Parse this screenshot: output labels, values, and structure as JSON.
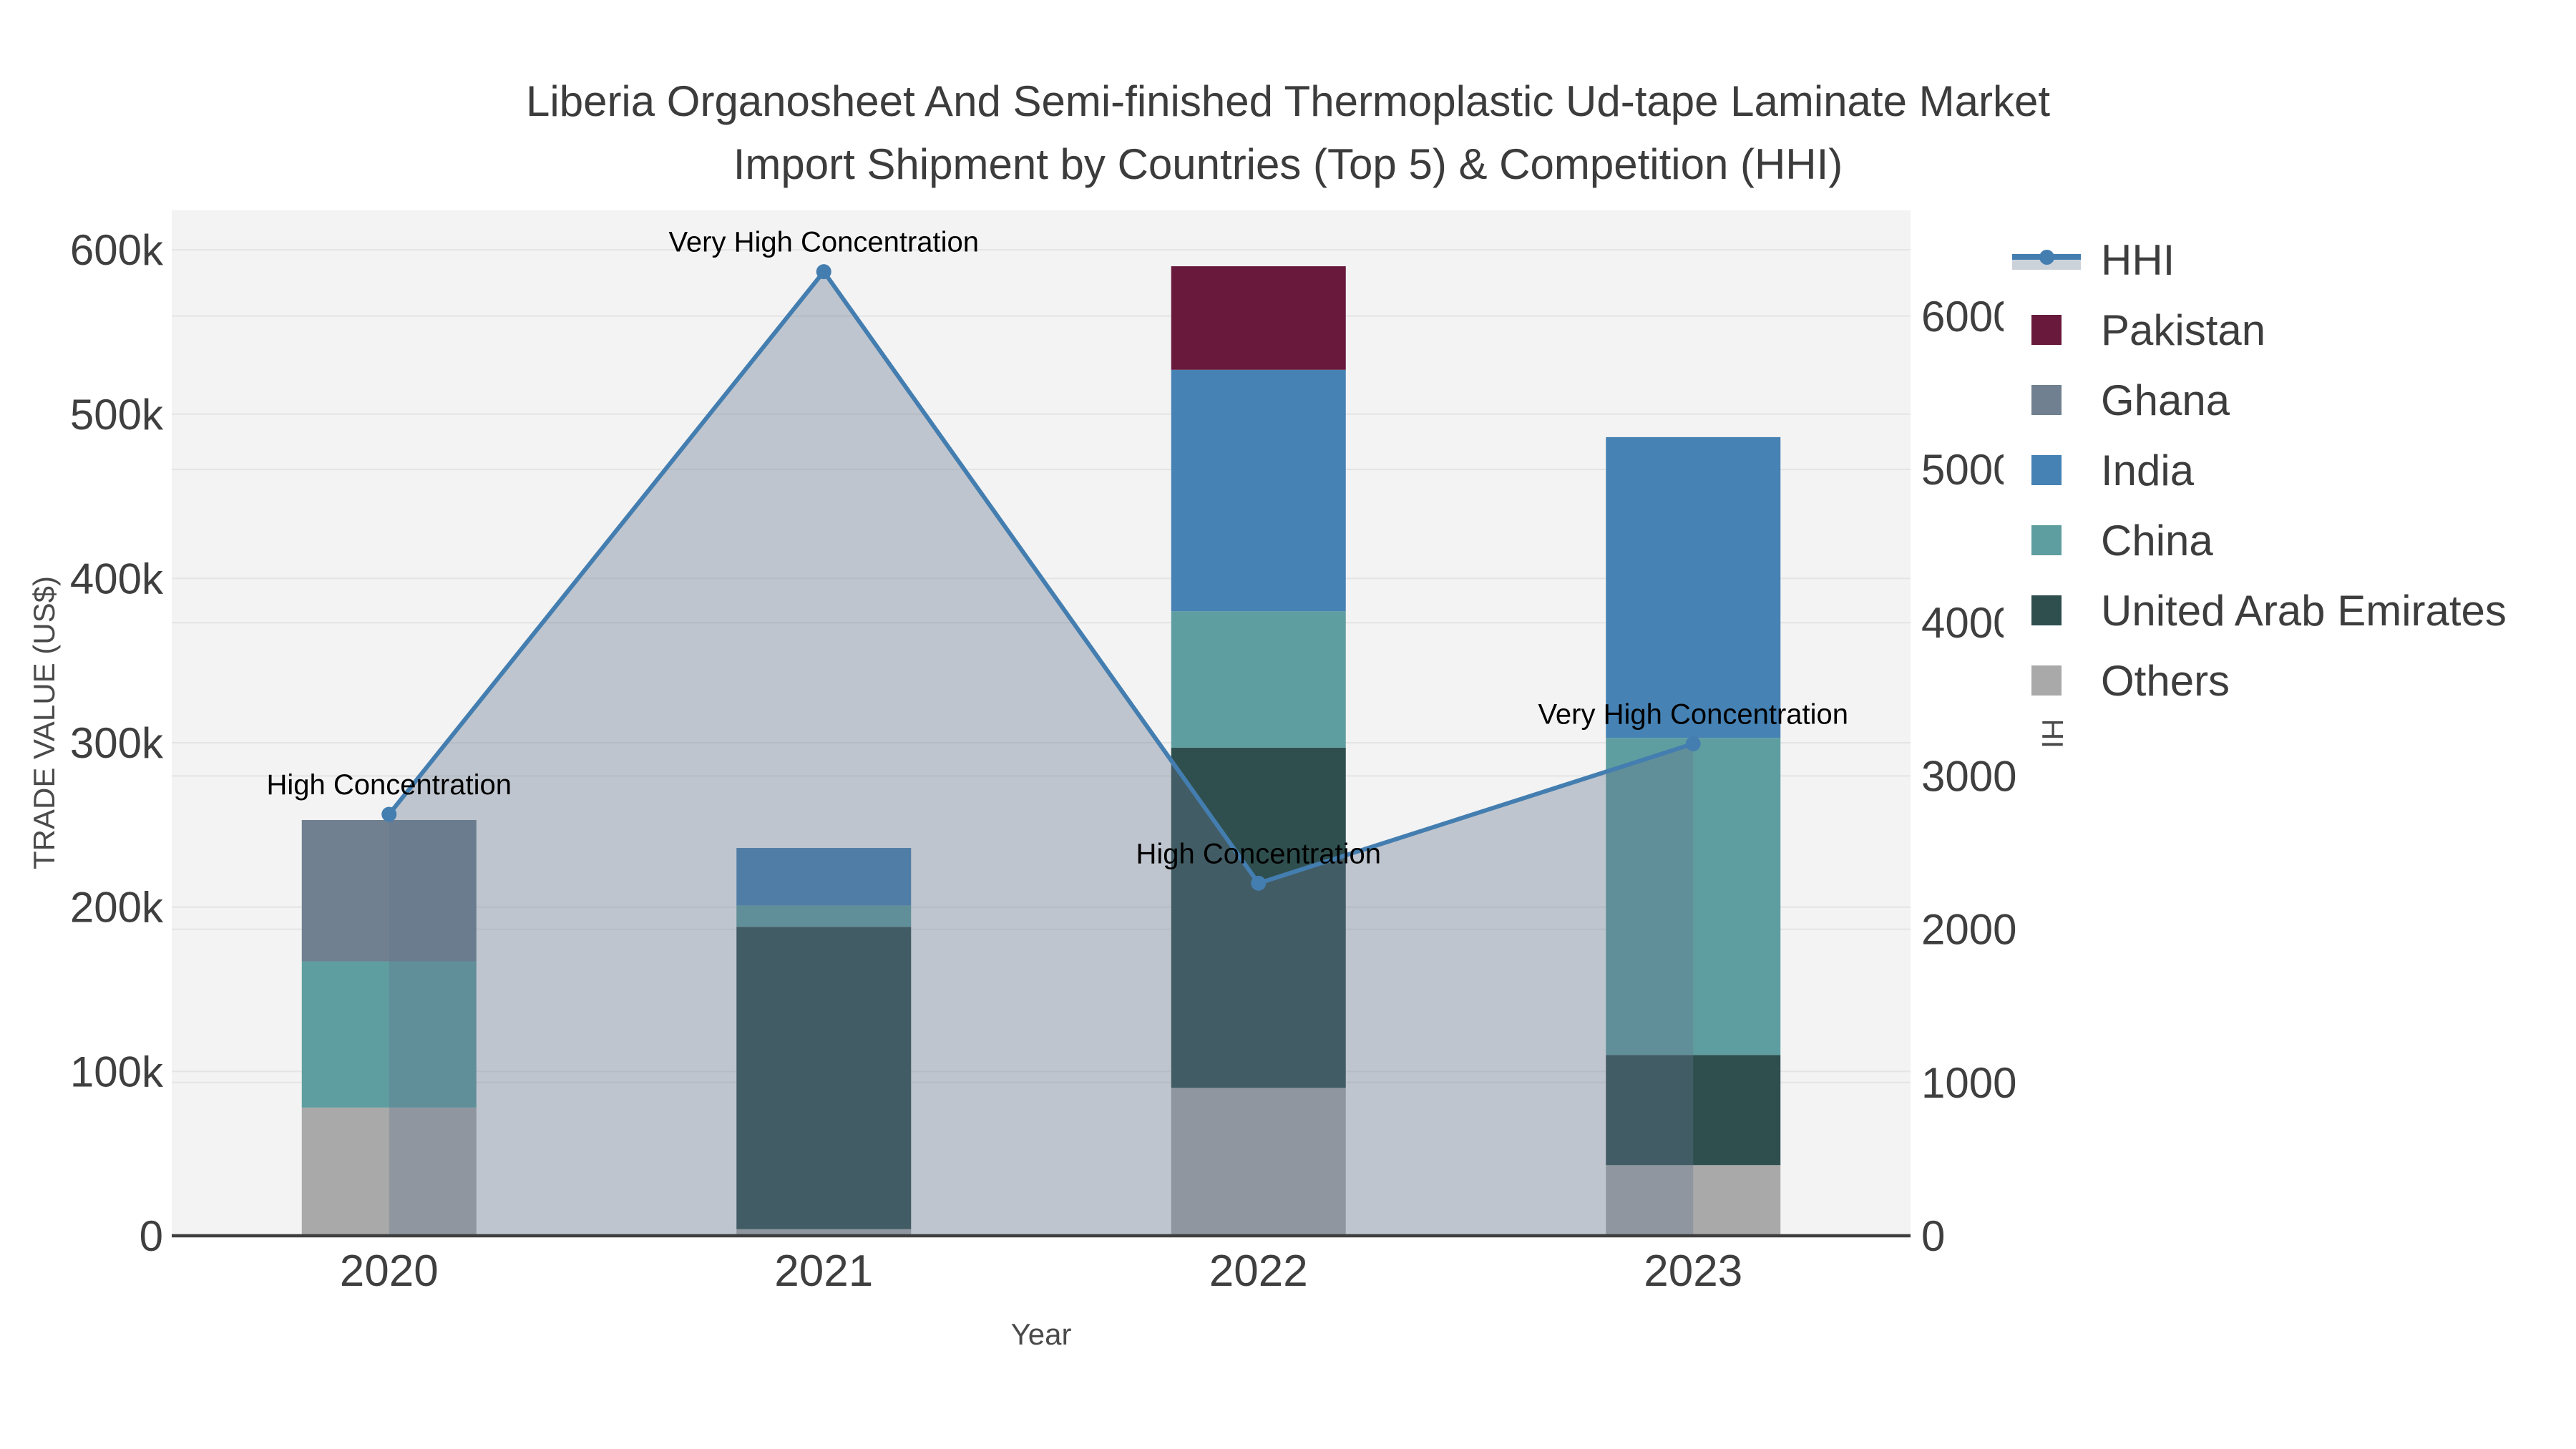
{
  "title": {
    "line1": "Liberia Organosheet And Semi-finished Thermoplastic Ud-tape Laminate Market",
    "line2": "Import Shipment by Countries (Top 5) & Competition (HHI)"
  },
  "chart_data": {
    "type": "bar+line",
    "description": "Stacked bar chart of import trade value by partner country with HHI concentration line on secondary axis and shaded area fill",
    "categories": [
      "2020",
      "2021",
      "2022",
      "2023"
    ],
    "xlabel": "Year",
    "axes": {
      "x": {
        "title": "Year"
      },
      "y_left": {
        "title": "TRADE VALUE (US$)",
        "tick_labels": [
          "0",
          "100k",
          "200k",
          "300k",
          "400k",
          "500k",
          "600k"
        ],
        "tick_values": [
          0,
          100000,
          200000,
          300000,
          400000,
          500000,
          600000
        ],
        "range": [
          0,
          624000
        ]
      },
      "y_right": {
        "title": "HHI",
        "tick_labels": [
          "0",
          "1000",
          "2000",
          "3000",
          "4000",
          "5000",
          "6000"
        ],
        "tick_values": [
          0,
          1000,
          2000,
          3000,
          4000,
          5000,
          6000
        ],
        "range": [
          0,
          6690
        ]
      }
    },
    "bar_series": [
      {
        "name": "Others",
        "color": "#a9a9a9",
        "values": [
          78000,
          4000,
          90000,
          43000
        ]
      },
      {
        "name": "United Arab Emirates",
        "color": "#2f4f4f",
        "values": [
          0,
          184000,
          207000,
          67000
        ]
      },
      {
        "name": "China",
        "color": "#5f9ea0",
        "values": [
          89000,
          13000,
          83000,
          193000
        ]
      },
      {
        "name": "India",
        "color": "#4682b4",
        "values": [
          0,
          35000,
          147000,
          183000
        ]
      },
      {
        "name": "Ghana",
        "color": "#708090",
        "values": [
          86000,
          0,
          0,
          0
        ]
      },
      {
        "name": "Pakistan",
        "color": "#69193c",
        "values": [
          0,
          0,
          63000,
          0
        ]
      }
    ],
    "line_series": {
      "name": "HHI",
      "axis": "right",
      "color": "#447eb0",
      "fill_color": "rgba(100,116,140,0.36)",
      "values": [
        2750,
        6290,
        2300,
        3210
      ]
    },
    "annotations": [
      {
        "category": "2020",
        "text": "High Concentration"
      },
      {
        "category": "2021",
        "text": "Very High Concentration"
      },
      {
        "category": "2022",
        "text": "High Concentration"
      },
      {
        "category": "2023",
        "text": "Very High Concentration"
      }
    ],
    "grid": true,
    "legend_position": "right",
    "plot_bg_color": "#f3f3f3",
    "grid_color": "#e4e4e4",
    "axis_line_color": "#3f3f3f",
    "legend": {
      "items": [
        {
          "label": "HHI",
          "type": "line",
          "color": "#447eb0",
          "band_color": "#ccd2da"
        },
        {
          "label": "Pakistan",
          "type": "swatch",
          "color": "#69193c"
        },
        {
          "label": "Ghana",
          "type": "swatch",
          "color": "#708090"
        },
        {
          "label": "India",
          "type": "swatch",
          "color": "#4682b4"
        },
        {
          "label": "China",
          "type": "swatch",
          "color": "#5f9ea0"
        },
        {
          "label": "United Arab Emirates",
          "type": "swatch",
          "color": "#2f4f4f"
        },
        {
          "label": "Others",
          "type": "swatch",
          "color": "#a9a9a9"
        }
      ]
    }
  }
}
